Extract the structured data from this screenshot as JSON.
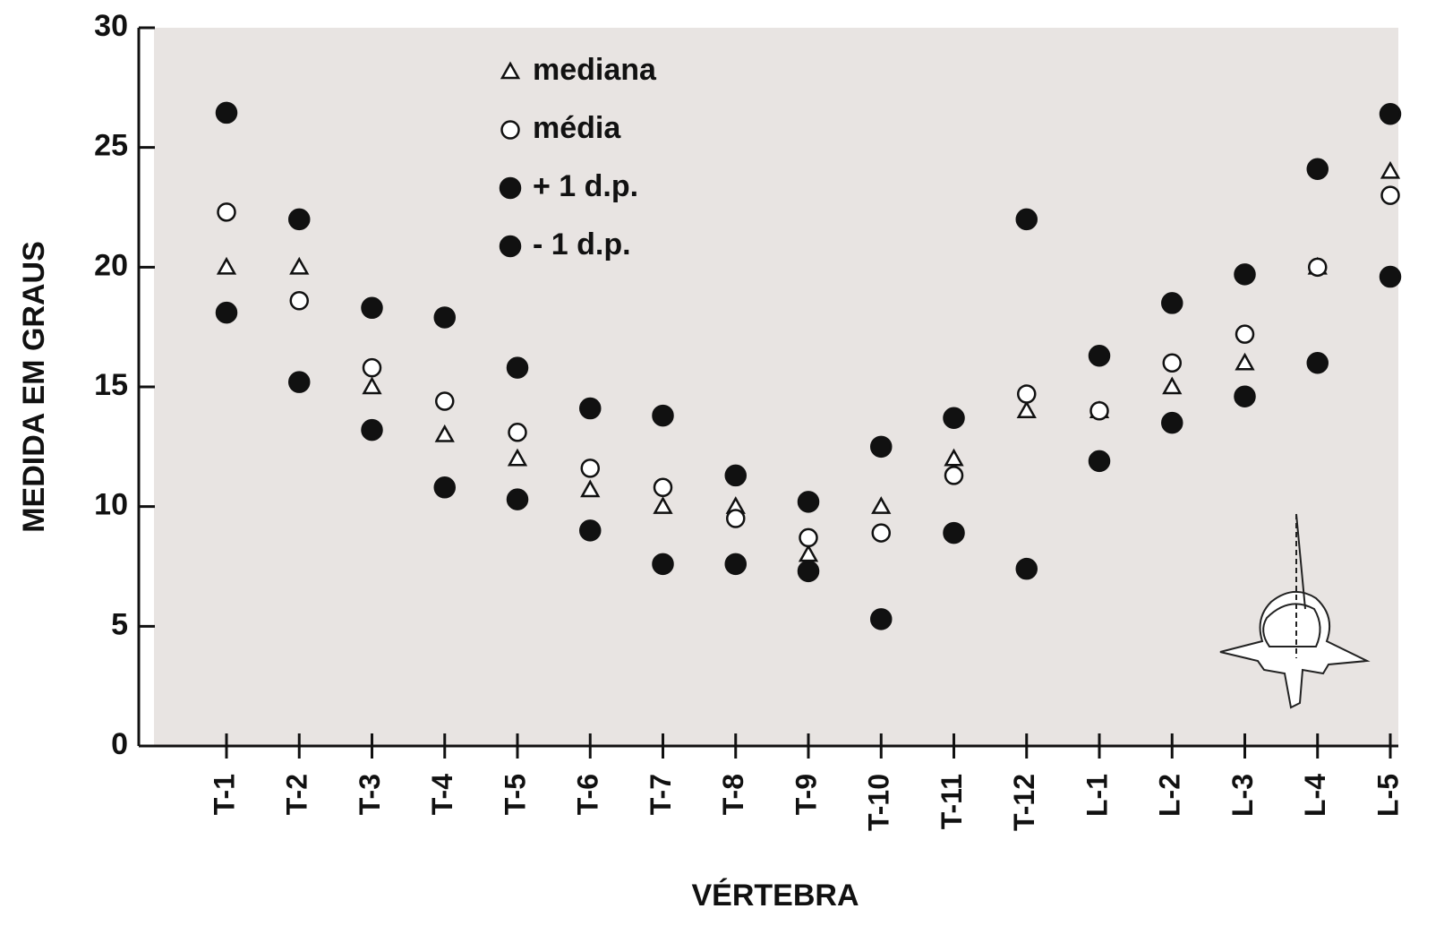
{
  "chart_data": {
    "type": "scatter",
    "x_label": "VÉRTEBRA",
    "y_label": "MEDIDA EM GRAUS",
    "categories": [
      "T-1",
      "T-2",
      "T-3",
      "T-4",
      "T-5",
      "T-6",
      "T-7",
      "T-8",
      "T-9",
      "T-10",
      "T-11",
      "T-12",
      "L-1",
      "L-2",
      "L-3",
      "L-4",
      "L-5"
    ],
    "series": [
      {
        "name": "mediana",
        "marker": "triangle",
        "color": "#ffffff",
        "values": [
          20,
          20,
          15,
          13,
          12,
          10.7,
          10,
          10,
          8,
          10,
          12,
          14,
          14,
          15,
          16,
          20,
          24
        ]
      },
      {
        "name": "média",
        "marker": "circle",
        "color": "#ffffff",
        "values": [
          22.3,
          18.6,
          15.8,
          14.4,
          13.1,
          11.6,
          10.8,
          9.5,
          8.7,
          8.9,
          11.3,
          14.7,
          14,
          16,
          17.2,
          20,
          23
        ]
      },
      {
        "name": "+ 1 d.p.",
        "marker": "circle",
        "color": "#111111",
        "values": [
          26.45,
          22,
          18.3,
          17.9,
          15.8,
          14.1,
          13.8,
          11.3,
          10.2,
          12.5,
          13.7,
          22,
          16.3,
          18.5,
          19.7,
          24.1,
          26.4
        ]
      },
      {
        "name": "- 1 d.p.",
        "marker": "circle",
        "color": "#111111",
        "values": [
          18.1,
          15.2,
          13.2,
          10.8,
          10.3,
          9,
          7.6,
          7.6,
          7.3,
          5.3,
          8.9,
          7.4,
          11.9,
          13.5,
          14.6,
          16,
          19.6
        ]
      }
    ],
    "ylim": [
      0,
      30
    ],
    "yticks": [
      0,
      5,
      10,
      15,
      20,
      25,
      30
    ],
    "background": "#e8e4e2",
    "legend": "top"
  }
}
